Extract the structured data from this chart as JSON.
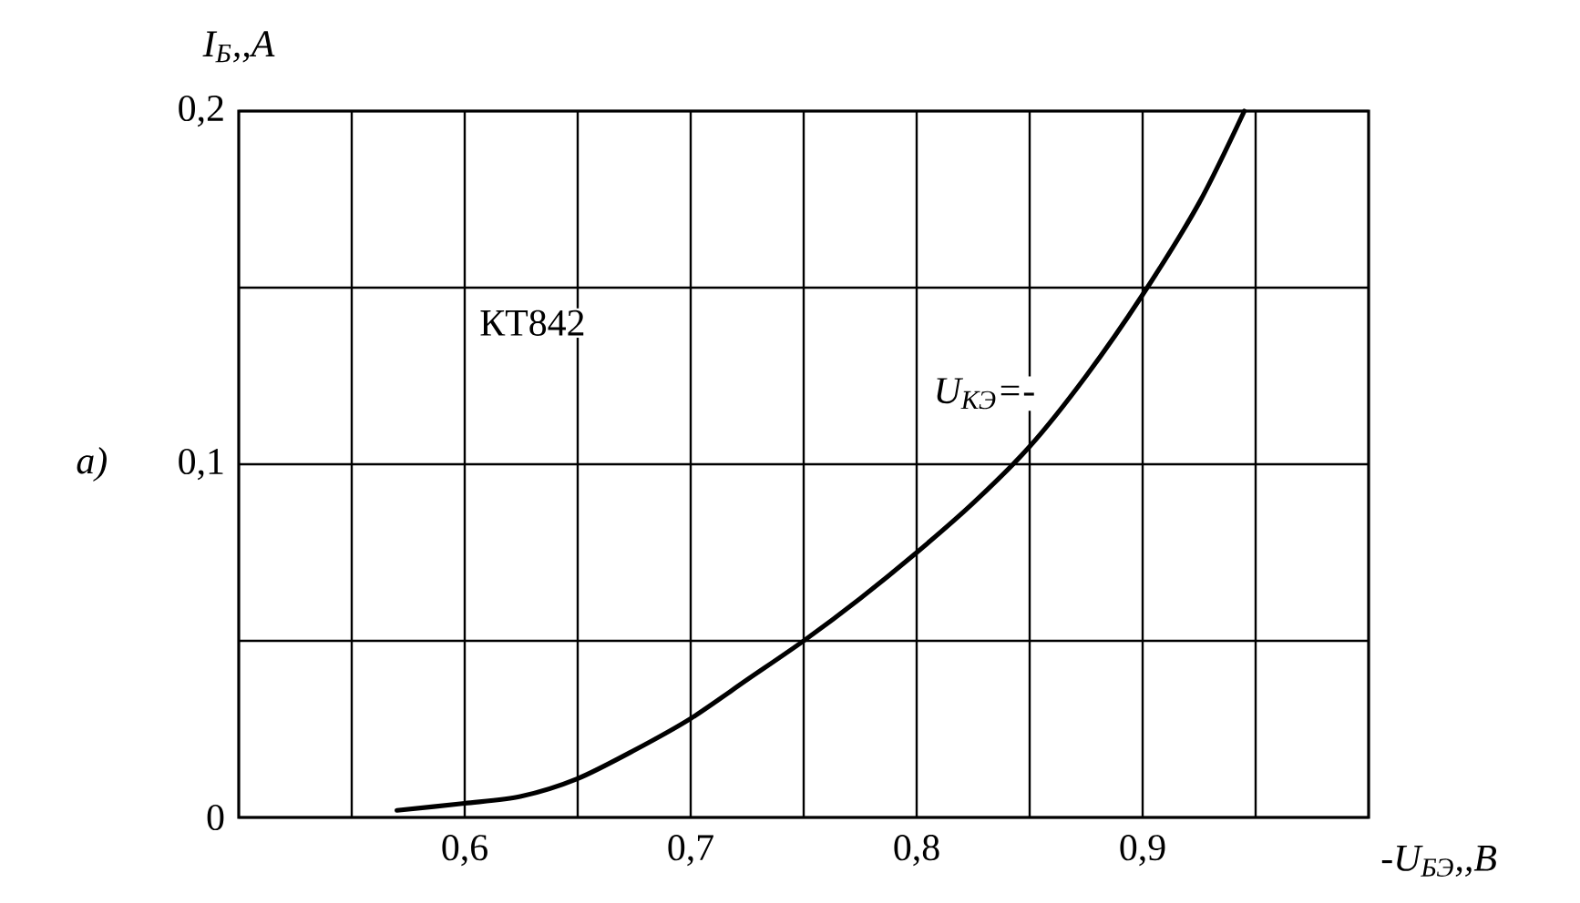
{
  "chart_data": {
    "type": "line",
    "xlabel": "-U$_{БЭ}$,,B",
    "ylabel": "I$_{Б}$,,A",
    "annotations": [
      "КТ842",
      "U$_{КЭ}$=-",
      "а)"
    ],
    "xlim": [
      0.5,
      1.0
    ],
    "ylim": [
      0,
      0.2
    ],
    "xticks": [
      {
        "value": 0.55,
        "label": null
      },
      {
        "value": 0.6,
        "label": "0,6"
      },
      {
        "value": 0.65,
        "label": null
      },
      {
        "value": 0.7,
        "label": "0,7"
      },
      {
        "value": 0.75,
        "label": null
      },
      {
        "value": 0.8,
        "label": "0,8"
      },
      {
        "value": 0.85,
        "label": null
      },
      {
        "value": 0.9,
        "label": "0,9"
      },
      {
        "value": 0.95,
        "label": null
      }
    ],
    "yticks": [
      0,
      {
        "value": 0.05,
        "label": null
      },
      {
        "value": 0.1,
        "label": "0,1"
      },
      {
        "value": 0.15,
        "label": null
      },
      {
        "value": 0.2,
        "label": "0,2"
      }
    ],
    "grid": true,
    "series": [
      {
        "color": "#000000",
        "x": [
          0.57,
          0.6,
          0.625,
          0.65,
          0.675,
          0.7,
          0.725,
          0.75,
          0.775,
          0.8,
          0.825,
          0.85,
          0.875,
          0.9,
          0.925,
          0.945
        ],
        "values": [
          0.002,
          0.004,
          0.006,
          0.011,
          0.019,
          0.028,
          0.039,
          0.05,
          0.062,
          0.075,
          0.089,
          0.105,
          0.125,
          0.148,
          0.174,
          0.2
        ]
      }
    ]
  }
}
